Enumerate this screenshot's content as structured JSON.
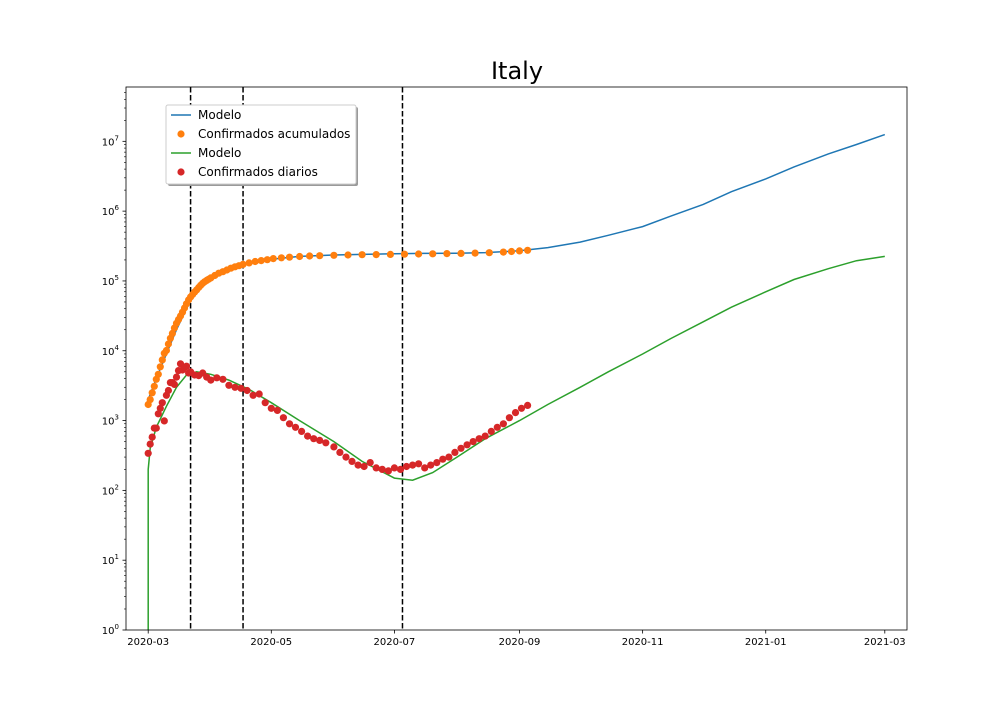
{
  "chart_data": {
    "type": "line",
    "title": "Italy",
    "xlabel": "",
    "ylabel": "",
    "yscale": "log",
    "ylim": [
      1,
      60000000
    ],
    "xlim": [
      "2020-02-19",
      "2021-03-12"
    ],
    "x_ticks": [
      "2020-03",
      "2020-05",
      "2020-07",
      "2020-09",
      "2020-11",
      "2021-01",
      "2021-03"
    ],
    "y_ticks": [
      {
        "value": 1,
        "base": "10",
        "exp": "0"
      },
      {
        "value": 10,
        "base": "10",
        "exp": "1"
      },
      {
        "value": 100,
        "base": "10",
        "exp": "2"
      },
      {
        "value": 1000,
        "base": "10",
        "exp": "3"
      },
      {
        "value": 10000,
        "base": "10",
        "exp": "4"
      },
      {
        "value": 100000,
        "base": "10",
        "exp": "5"
      },
      {
        "value": 1000000,
        "base": "10",
        "exp": "6"
      },
      {
        "value": 10000000,
        "base": "10",
        "exp": "7"
      }
    ],
    "vlines": [
      "2020-03-22",
      "2020-04-17",
      "2020-07-05"
    ],
    "grid": false,
    "legend_position": "top-left",
    "legend": [
      {
        "label": "Modelo",
        "kind": "line",
        "color": "#1f77b4"
      },
      {
        "label": "Confirmados acumulados",
        "kind": "marker",
        "color": "#ff7f0e"
      },
      {
        "label": "Modelo",
        "kind": "line",
        "color": "#2ca02c"
      },
      {
        "label": "Confirmados diarios",
        "kind": "marker",
        "color": "#d62728"
      }
    ],
    "series": [
      {
        "kind": "line",
        "color": "#1f77b4",
        "x": [
          "2020-03-01",
          "2020-03-05",
          "2020-03-10",
          "2020-03-15",
          "2020-03-20",
          "2020-03-25",
          "2020-04-01",
          "2020-04-10",
          "2020-04-20",
          "2020-05-01",
          "2020-05-15",
          "2020-06-01",
          "2020-06-15",
          "2020-07-01",
          "2020-07-15",
          "2020-08-01",
          "2020-08-15",
          "2020-09-01",
          "2020-09-15",
          "2020-10-01",
          "2020-10-15",
          "2020-11-01",
          "2020-11-15",
          "2020-12-01",
          "2020-12-15",
          "2021-01-01",
          "2021-01-15",
          "2021-02-01",
          "2021-02-15",
          "2021-03-01"
        ],
        "y": [
          2000,
          4000,
          9000,
          20000,
          40000,
          75000,
          110000,
          145000,
          180000,
          205000,
          225000,
          235000,
          240000,
          245000,
          248000,
          250000,
          255000,
          270000,
          300000,
          360000,
          450000,
          600000,
          850000,
          1250000,
          1900000,
          2900000,
          4300000,
          6600000,
          9000000,
          12500000
        ]
      },
      {
        "kind": "line",
        "color": "#2ca02c",
        "x": [
          "2020-03-01",
          "2020-03-01",
          "2020-03-02",
          "2020-03-05",
          "2020-03-10",
          "2020-03-15",
          "2020-03-20",
          "2020-03-25",
          "2020-04-01",
          "2020-04-10",
          "2020-04-20",
          "2020-05-01",
          "2020-05-15",
          "2020-06-01",
          "2020-06-15",
          "2020-07-01",
          "2020-07-10",
          "2020-07-20",
          "2020-08-01",
          "2020-08-15",
          "2020-09-01",
          "2020-09-15",
          "2020-10-01",
          "2020-10-15",
          "2020-11-01",
          "2020-11-15",
          "2020-12-01",
          "2020-12-15",
          "2021-01-01",
          "2021-01-15",
          "2021-02-01",
          "2021-02-15",
          "2021-03-01"
        ],
        "y": [
          1,
          200,
          400,
          800,
          1600,
          3000,
          4500,
          5000,
          4600,
          3800,
          2800,
          1800,
          1000,
          500,
          260,
          150,
          140,
          180,
          300,
          550,
          1000,
          1700,
          3000,
          5000,
          9000,
          15000,
          26000,
          42000,
          70000,
          105000,
          150000,
          195000,
          225000
        ]
      },
      {
        "kind": "scatter",
        "color": "#ff7f0e",
        "x": [
          "2020-03-01",
          "2020-03-02",
          "2020-03-03",
          "2020-03-04",
          "2020-03-05",
          "2020-03-06",
          "2020-03-07",
          "2020-03-08",
          "2020-03-09",
          "2020-03-10",
          "2020-03-11",
          "2020-03-12",
          "2020-03-13",
          "2020-03-14",
          "2020-03-15",
          "2020-03-16",
          "2020-03-17",
          "2020-03-18",
          "2020-03-19",
          "2020-03-20",
          "2020-03-21",
          "2020-03-22",
          "2020-03-23",
          "2020-03-24",
          "2020-03-25",
          "2020-03-26",
          "2020-03-27",
          "2020-03-28",
          "2020-03-29",
          "2020-03-30",
          "2020-03-31",
          "2020-04-01",
          "2020-04-03",
          "2020-04-05",
          "2020-04-07",
          "2020-04-09",
          "2020-04-11",
          "2020-04-13",
          "2020-04-15",
          "2020-04-17",
          "2020-04-20",
          "2020-04-23",
          "2020-04-26",
          "2020-04-29",
          "2020-05-02",
          "2020-05-06",
          "2020-05-10",
          "2020-05-15",
          "2020-05-20",
          "2020-05-25",
          "2020-06-01",
          "2020-06-08",
          "2020-06-15",
          "2020-06-22",
          "2020-06-29",
          "2020-07-06",
          "2020-07-13",
          "2020-07-20",
          "2020-07-27",
          "2020-08-03",
          "2020-08-10",
          "2020-08-17",
          "2020-08-24",
          "2020-08-28",
          "2020-09-01",
          "2020-09-05"
        ],
        "y": [
          1700,
          2000,
          2500,
          3100,
          3900,
          4600,
          5900,
          7400,
          9200,
          10100,
          12500,
          15100,
          17700,
          21200,
          24700,
          27900,
          31500,
          35700,
          41000,
          47000,
          53600,
          59100,
          63900,
          69200,
          74400,
          80500,
          86500,
          92500,
          97700,
          101700,
          105800,
          110600,
          119800,
          128900,
          135600,
          143600,
          152300,
          159500,
          165200,
          172400,
          181200,
          189900,
          195400,
          201500,
          209300,
          214500,
          219100,
          223900,
          227400,
          230200,
          233200,
          235600,
          237500,
          238700,
          240400,
          241800,
          243300,
          244600,
          246500,
          248200,
          250800,
          254200,
          259300,
          263900,
          269200,
          274600
        ]
      },
      {
        "kind": "scatter",
        "color": "#d62728",
        "x": [
          "2020-03-01",
          "2020-03-02",
          "2020-03-03",
          "2020-03-04",
          "2020-03-05",
          "2020-03-06",
          "2020-03-07",
          "2020-03-08",
          "2020-03-09",
          "2020-03-10",
          "2020-03-11",
          "2020-03-12",
          "2020-03-13",
          "2020-03-14",
          "2020-03-15",
          "2020-03-16",
          "2020-03-17",
          "2020-03-18",
          "2020-03-19",
          "2020-03-20",
          "2020-03-21",
          "2020-03-22",
          "2020-03-24",
          "2020-03-26",
          "2020-03-28",
          "2020-03-30",
          "2020-04-01",
          "2020-04-04",
          "2020-04-07",
          "2020-04-10",
          "2020-04-13",
          "2020-04-16",
          "2020-04-19",
          "2020-04-22",
          "2020-04-25",
          "2020-04-28",
          "2020-05-01",
          "2020-05-04",
          "2020-05-07",
          "2020-05-10",
          "2020-05-13",
          "2020-05-16",
          "2020-05-19",
          "2020-05-22",
          "2020-05-25",
          "2020-05-28",
          "2020-06-01",
          "2020-06-04",
          "2020-06-07",
          "2020-06-10",
          "2020-06-13",
          "2020-06-16",
          "2020-06-19",
          "2020-06-22",
          "2020-06-25",
          "2020-06-28",
          "2020-07-01",
          "2020-07-04",
          "2020-07-07",
          "2020-07-10",
          "2020-07-13",
          "2020-07-16",
          "2020-07-19",
          "2020-07-22",
          "2020-07-25",
          "2020-07-28",
          "2020-07-31",
          "2020-08-03",
          "2020-08-06",
          "2020-08-09",
          "2020-08-12",
          "2020-08-15",
          "2020-08-18",
          "2020-08-21",
          "2020-08-24",
          "2020-08-27",
          "2020-08-30",
          "2020-09-02",
          "2020-09-05"
        ],
        "y": [
          340,
          460,
          580,
          780,
          780,
          1250,
          1500,
          1800,
          990,
          2300,
          2700,
          3500,
          3500,
          3300,
          4200,
          5200,
          6500,
          5300,
          5800,
          6000,
          4800,
          5000,
          4500,
          4400,
          4800,
          4200,
          3800,
          4100,
          3900,
          3200,
          3000,
          2900,
          2700,
          2300,
          2400,
          1800,
          1500,
          1400,
          1100,
          900,
          800,
          700,
          600,
          550,
          520,
          480,
          420,
          350,
          300,
          260,
          230,
          220,
          250,
          210,
          200,
          190,
          210,
          200,
          220,
          230,
          240,
          210,
          230,
          250,
          280,
          300,
          350,
          400,
          450,
          500,
          550,
          600,
          700,
          800,
          900,
          1100,
          1300,
          1500,
          1650
        ]
      }
    ]
  }
}
